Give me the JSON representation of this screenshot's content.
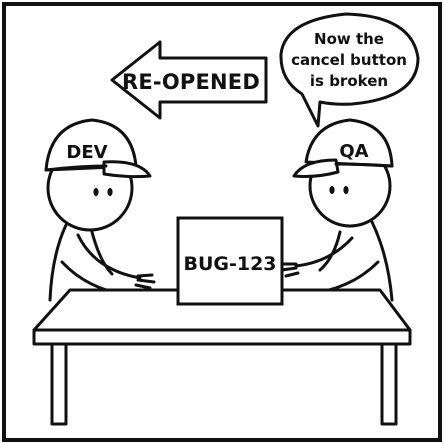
{
  "panel": {
    "arrow_label": "RE-OPENED",
    "speech_bubble": {
      "line1": "Now the",
      "line2": "cancel button",
      "line3": "is broken"
    },
    "left_character": {
      "cap_label": "DEV"
    },
    "right_character": {
      "cap_label": "QA"
    },
    "laptop_label": "BUG-123"
  },
  "colors": {
    "ink": "#111111",
    "background": "#ffffff"
  }
}
